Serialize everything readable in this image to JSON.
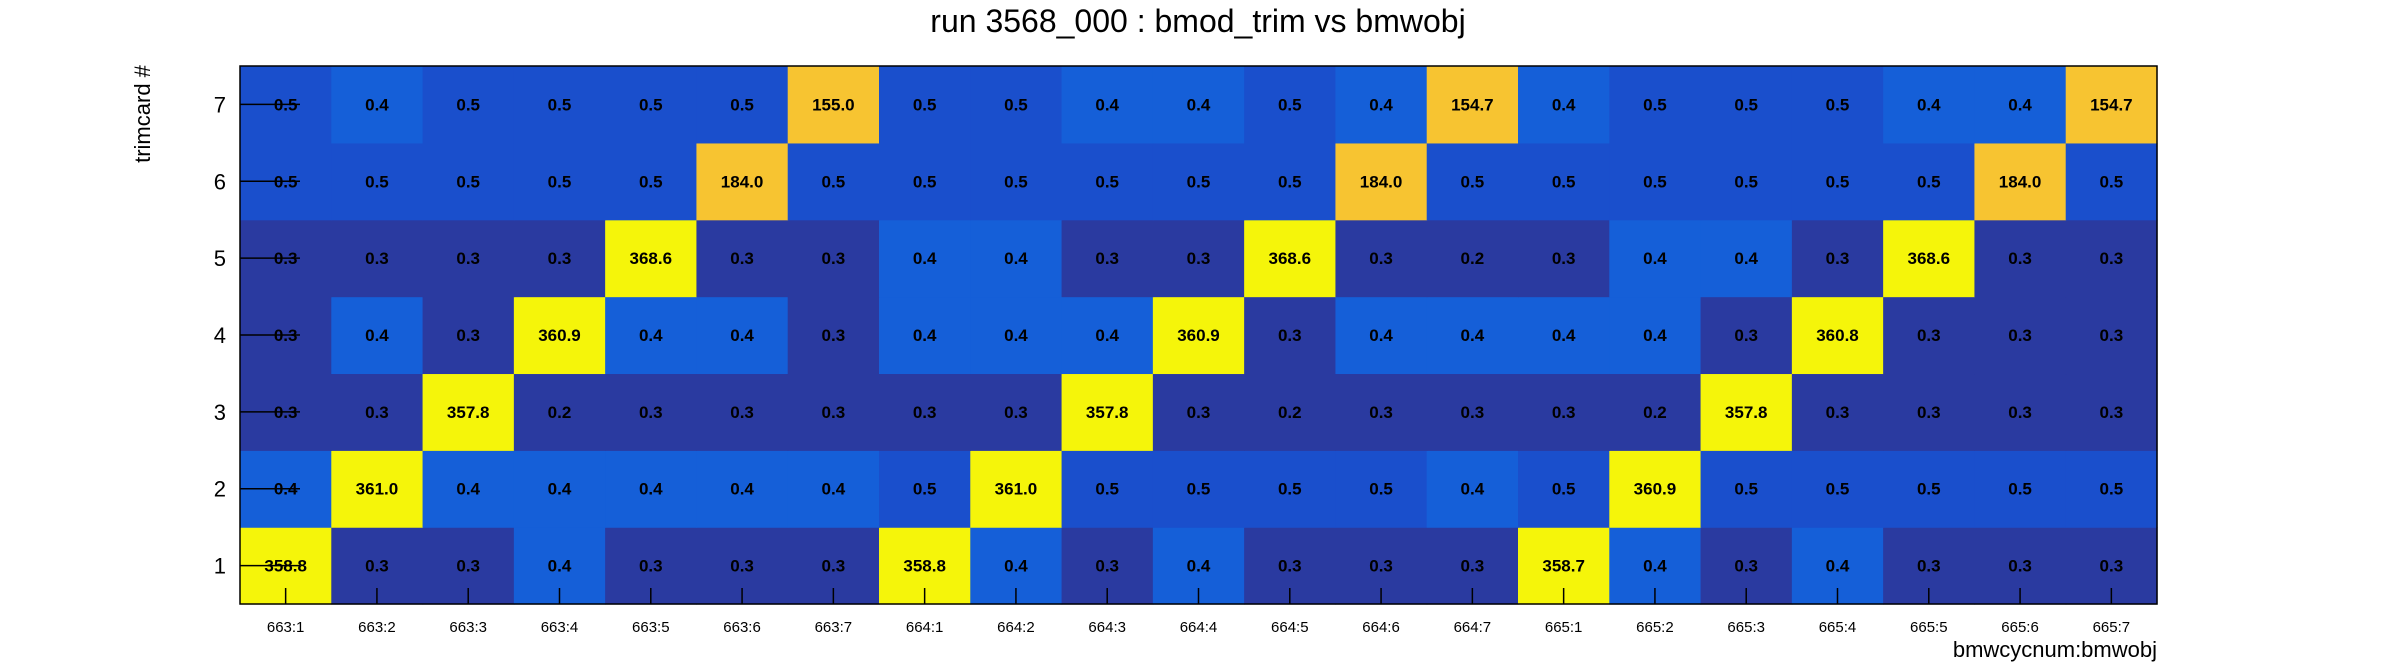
{
  "chart_data": {
    "type": "heatmap",
    "title": "run 3568_000 : bmod_trim vs bmwobj",
    "xlabel": "bmwcycnum:bmwobj",
    "ylabel": "trimcard #",
    "x_categories": [
      "663:1",
      "663:2",
      "663:3",
      "663:4",
      "663:5",
      "663:6",
      "663:7",
      "664:1",
      "664:2",
      "664:3",
      "664:4",
      "664:5",
      "664:6",
      "664:7",
      "665:1",
      "665:2",
      "665:3",
      "665:4",
      "665:5",
      "665:6",
      "665:7"
    ],
    "y_categories": [
      "1",
      "2",
      "3",
      "4",
      "5",
      "6",
      "7"
    ],
    "z": [
      [
        358.8,
        0.3,
        0.3,
        0.4,
        0.3,
        0.3,
        0.3,
        358.8,
        0.4,
        0.3,
        0.4,
        0.3,
        0.3,
        0.3,
        358.7,
        0.4,
        0.3,
        0.4,
        0.3,
        0.3,
        0.3
      ],
      [
        0.4,
        361.0,
        0.4,
        0.4,
        0.4,
        0.4,
        0.4,
        0.5,
        361.0,
        0.5,
        0.5,
        0.5,
        0.5,
        0.4,
        0.5,
        360.9,
        0.5,
        0.5,
        0.5,
        0.5,
        0.5
      ],
      [
        0.3,
        0.3,
        357.8,
        0.2,
        0.3,
        0.3,
        0.3,
        0.3,
        0.3,
        357.8,
        0.3,
        0.2,
        0.3,
        0.3,
        0.3,
        0.2,
        357.8,
        0.3,
        0.3,
        0.3,
        0.3
      ],
      [
        0.3,
        0.4,
        0.3,
        360.9,
        0.4,
        0.4,
        0.3,
        0.4,
        0.4,
        0.4,
        360.9,
        0.3,
        0.4,
        0.4,
        0.4,
        0.4,
        0.3,
        360.8,
        0.3,
        0.3,
        0.3
      ],
      [
        0.3,
        0.3,
        0.3,
        0.3,
        368.6,
        0.3,
        0.3,
        0.4,
        0.4,
        0.3,
        0.3,
        368.6,
        0.3,
        0.2,
        0.3,
        0.4,
        0.4,
        0.3,
        368.6,
        0.3,
        0.3
      ],
      [
        0.5,
        0.5,
        0.5,
        0.5,
        0.5,
        184.0,
        0.5,
        0.5,
        0.5,
        0.5,
        0.5,
        0.5,
        184.0,
        0.5,
        0.5,
        0.5,
        0.5,
        0.5,
        0.5,
        184.0,
        0.5
      ],
      [
        0.5,
        0.4,
        0.5,
        0.5,
        0.5,
        0.5,
        155.0,
        0.5,
        0.5,
        0.4,
        0.4,
        0.5,
        0.4,
        154.7,
        0.4,
        0.5,
        0.5,
        0.5,
        0.4,
        0.4,
        154.7
      ]
    ],
    "colors": {
      "very_low": "#2a3aa0",
      "low": "#1a4fcc",
      "mid_low": "#155fd8",
      "mid": "#f7c431",
      "high": "#f5f50a"
    },
    "grid": false,
    "legend": "none"
  }
}
